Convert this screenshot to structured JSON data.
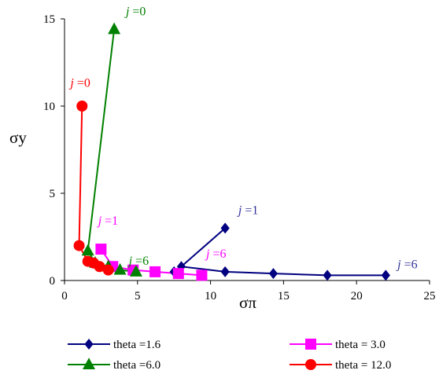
{
  "chart_data": {
    "type": "line",
    "title": "",
    "xlabel": "σπ",
    "ylabel": "σy",
    "xlim": [
      0,
      25
    ],
    "ylim": [
      0,
      15
    ],
    "x_ticks": [
      0,
      5,
      10,
      15,
      20,
      25
    ],
    "y_ticks": [
      0,
      5,
      10,
      15
    ],
    "grid": false,
    "legend_position": "bottom",
    "series": [
      {
        "name": "theta =1.6",
        "color": "#000080",
        "marker": "diamond",
        "points": [
          [
            11,
            3
          ],
          [
            11,
            0.5
          ],
          [
            14.3,
            0.4
          ],
          [
            18,
            0.3
          ],
          [
            22,
            0.3
          ],
          [
            8,
            0.8
          ],
          [
            7.5,
            0.5
          ]
        ],
        "line_order": [
          [
            7.5,
            0.5
          ],
          [
            8,
            0.8
          ],
          [
            11,
            0.5
          ],
          [
            14.3,
            0.4
          ],
          [
            18,
            0.3
          ],
          [
            22,
            0.3
          ]
        ],
        "extra_segment": [
          [
            8,
            0.8
          ],
          [
            11,
            3
          ]
        ]
      },
      {
        "name": "theta = 3.0",
        "color": "#ff00ff",
        "marker": "square",
        "points": [
          [
            2.5,
            1.8
          ],
          [
            3.3,
            0.8
          ],
          [
            4.7,
            0.6
          ],
          [
            6.2,
            0.5
          ],
          [
            7.8,
            0.4
          ],
          [
            9.4,
            0.3
          ]
        ]
      },
      {
        "name": "theta =6.0",
        "color": "#008000",
        "marker": "triangle",
        "points": [
          [
            3.4,
            14.4
          ],
          [
            1.6,
            1.7
          ],
          [
            2.1,
            1.0
          ],
          [
            3.0,
            0.8
          ],
          [
            3.8,
            0.6
          ],
          [
            4.9,
            0.5
          ]
        ]
      },
      {
        "name": "theta = 12.0",
        "color": "#ff0000",
        "marker": "circle",
        "points": [
          [
            1.2,
            10
          ],
          [
            1.0,
            2.0
          ],
          [
            1.6,
            1.1
          ],
          [
            2.0,
            1.0
          ],
          [
            2.4,
            0.8
          ],
          [
            3.0,
            0.6
          ]
        ]
      }
    ],
    "annotations": [
      {
        "prefix": "j",
        "text": " =0",
        "x": 4.2,
        "y": 15.2,
        "color": "#008000"
      },
      {
        "prefix": "j",
        "text": " =0",
        "x": 0.4,
        "y": 11.1,
        "color": "#ff0000"
      },
      {
        "prefix": "j",
        "text": " =1",
        "x": 2.3,
        "y": 3.2,
        "color": "#ff00ff"
      },
      {
        "prefix": "j",
        "text": " =6",
        "x": 4.4,
        "y": 0.9,
        "color": "#008000"
      },
      {
        "prefix": "j",
        "text": " =1",
        "x": 11.9,
        "y": 3.8,
        "color": "#333399"
      },
      {
        "prefix": "j",
        "text": " =6",
        "x": 9.7,
        "y": 1.3,
        "color": "#ff00ff"
      },
      {
        "prefix": "j",
        "text": " =6",
        "x": 22.8,
        "y": 0.7,
        "color": "#333399"
      }
    ]
  }
}
